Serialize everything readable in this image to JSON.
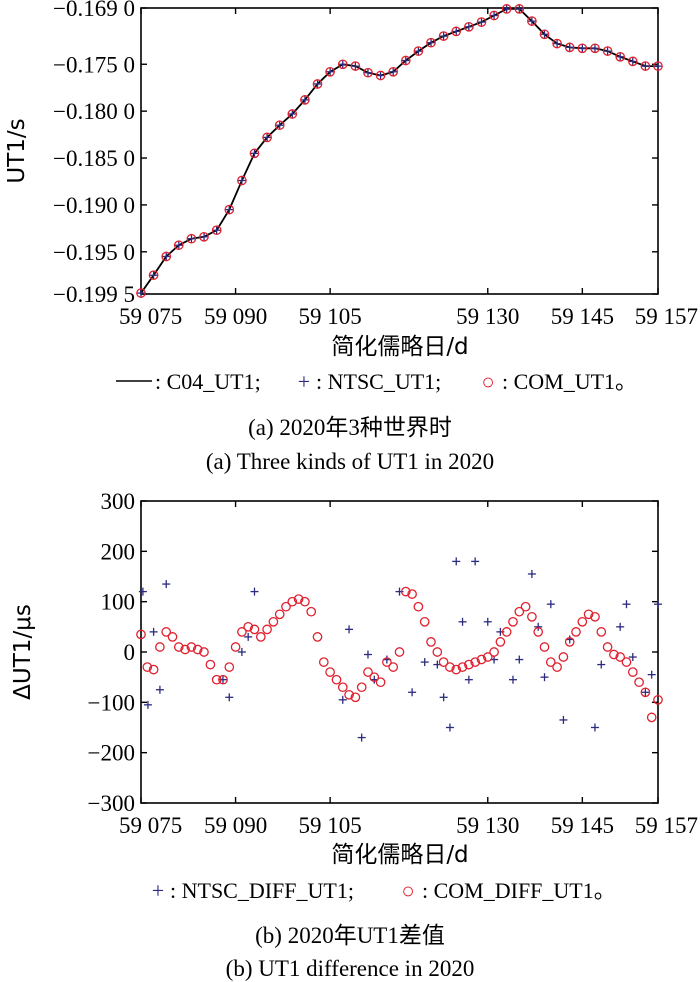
{
  "chart_data": [
    {
      "type": "line",
      "panel": "a",
      "xlabel": "简化儒略日/d",
      "ylabel": "UT1/s",
      "xlim": [
        59075,
        59157
      ],
      "ylim": [
        -0.1995,
        -0.169
      ],
      "xticks": [
        59075,
        59090,
        59105,
        59130,
        59145,
        59157
      ],
      "xtick_labels": [
        "59 075",
        "59 090",
        "59 105",
        "59 130",
        "59 145",
        "59 157"
      ],
      "yticks": [
        -0.1995,
        -0.195,
        -0.19,
        -0.185,
        -0.18,
        -0.175,
        -0.169
      ],
      "ytick_labels": [
        "−0.199 5",
        "−0.195 0",
        "−0.190 0",
        "−0.185 0",
        "−0.180 0",
        "−0.175 0",
        "−0.169 0"
      ],
      "series": [
        {
          "name": "C04_UT1",
          "style": "line",
          "color": "#000000",
          "x": [
            59075,
            59077,
            59079,
            59081,
            59083,
            59085,
            59087,
            59089,
            59091,
            59093,
            59095,
            59097,
            59099,
            59101,
            59103,
            59105,
            59107,
            59109,
            59111,
            59113,
            59115,
            59117,
            59119,
            59121,
            59123,
            59125,
            59127,
            59129,
            59131,
            59133,
            59135,
            59137,
            59139,
            59141,
            59143,
            59145,
            59147,
            59149,
            59151,
            59153,
            59155,
            59157
          ],
          "y": [
            -0.1994,
            -0.1975,
            -0.1955,
            -0.1943,
            -0.1936,
            -0.1934,
            -0.1927,
            -0.1905,
            -0.1874,
            -0.1845,
            -0.1828,
            -0.1815,
            -0.1803,
            -0.1788,
            -0.1771,
            -0.1758,
            -0.175,
            -0.1752,
            -0.1759,
            -0.1762,
            -0.1758,
            -0.1746,
            -0.1736,
            -0.1727,
            -0.172,
            -0.1715,
            -0.171,
            -0.1705,
            -0.1698,
            -0.1691,
            -0.1691,
            -0.1704,
            -0.1718,
            -0.1728,
            -0.1732,
            -0.1733,
            -0.1733,
            -0.1736,
            -0.1742,
            -0.1747,
            -0.1752,
            -0.1752
          ]
        },
        {
          "name": "NTSC_UT1",
          "style": "plus",
          "color": "#2b2b80",
          "x": [
            59075,
            59077,
            59079,
            59081,
            59083,
            59085,
            59087,
            59089,
            59091,
            59093,
            59095,
            59097,
            59099,
            59101,
            59103,
            59105,
            59107,
            59109,
            59111,
            59113,
            59115,
            59117,
            59119,
            59121,
            59123,
            59125,
            59127,
            59129,
            59131,
            59133,
            59135,
            59137,
            59139,
            59141,
            59143,
            59145,
            59147,
            59149,
            59151,
            59153,
            59155,
            59157
          ],
          "y": [
            -0.1994,
            -0.1975,
            -0.1955,
            -0.1943,
            -0.1936,
            -0.1934,
            -0.1927,
            -0.1905,
            -0.1874,
            -0.1845,
            -0.1828,
            -0.1815,
            -0.1803,
            -0.1788,
            -0.1771,
            -0.1758,
            -0.175,
            -0.1752,
            -0.1759,
            -0.1762,
            -0.1758,
            -0.1746,
            -0.1736,
            -0.1727,
            -0.172,
            -0.1715,
            -0.171,
            -0.1705,
            -0.1698,
            -0.1691,
            -0.1691,
            -0.1704,
            -0.1718,
            -0.1728,
            -0.1732,
            -0.1733,
            -0.1733,
            -0.1736,
            -0.1742,
            -0.1747,
            -0.1752,
            -0.1752
          ]
        },
        {
          "name": "COM_UT1",
          "style": "circle",
          "color": "#e0202e",
          "x": [
            59075,
            59077,
            59079,
            59081,
            59083,
            59085,
            59087,
            59089,
            59091,
            59093,
            59095,
            59097,
            59099,
            59101,
            59103,
            59105,
            59107,
            59109,
            59111,
            59113,
            59115,
            59117,
            59119,
            59121,
            59123,
            59125,
            59127,
            59129,
            59131,
            59133,
            59135,
            59137,
            59139,
            59141,
            59143,
            59145,
            59147,
            59149,
            59151,
            59153,
            59155,
            59157
          ],
          "y": [
            -0.1994,
            -0.1975,
            -0.1955,
            -0.1943,
            -0.1936,
            -0.1934,
            -0.1927,
            -0.1905,
            -0.1874,
            -0.1845,
            -0.1828,
            -0.1815,
            -0.1803,
            -0.1788,
            -0.1771,
            -0.1758,
            -0.175,
            -0.1752,
            -0.1759,
            -0.1762,
            -0.1758,
            -0.1746,
            -0.1736,
            -0.1727,
            -0.172,
            -0.1715,
            -0.171,
            -0.1705,
            -0.1698,
            -0.1691,
            -0.1691,
            -0.1704,
            -0.1718,
            -0.1728,
            -0.1732,
            -0.1733,
            -0.1733,
            -0.1736,
            -0.1742,
            -0.1747,
            -0.1752,
            -0.1752
          ]
        }
      ],
      "legend": [
        {
          "symbol": "——",
          "label": ": C04_UT1;"
        },
        {
          "symbol": "+",
          "label": ": NTSC_UT1;"
        },
        {
          "symbol": "○",
          "label": ": COM_UT1。"
        }
      ],
      "caption_cn": "(a) 2020年3种世界时",
      "caption_en": "(a) Three kinds of UT1 in 2020"
    },
    {
      "type": "scatter",
      "panel": "b",
      "xlabel": "简化儒略日/d",
      "ylabel": "ΔUT1/μs",
      "xlim": [
        59075,
        59157
      ],
      "ylim": [
        -300,
        300
      ],
      "xticks": [
        59075,
        59090,
        59105,
        59130,
        59145,
        59157
      ],
      "xtick_labels": [
        "59 075",
        "59 090",
        "59 105",
        "59 130",
        "59 145",
        "59 157"
      ],
      "yticks": [
        -300,
        -200,
        -100,
        0,
        100,
        200,
        300
      ],
      "ytick_labels": [
        "−300",
        "−200",
        "−100",
        "0",
        "100",
        "200",
        "300"
      ],
      "series": [
        {
          "name": "NTSC_DIFF_UT1",
          "style": "plus",
          "color": "#2b2b80",
          "x": [
            59075.3,
            59076.1,
            59077.0,
            59078.0,
            59079.0,
            59088.0,
            59089.0,
            59091.0,
            59092.0,
            59093.0,
            59107.0,
            59108.0,
            59110.0,
            59111.0,
            59112.0,
            59114.0,
            59116.0,
            59118.0,
            59120.0,
            59122.0,
            59123.0,
            59124.0,
            59125.0,
            59126.0,
            59127.0,
            59128.0,
            59130.0,
            59131.0,
            59132.0,
            59134.0,
            59135.0,
            59137.0,
            59138.0,
            59139.0,
            59140.0,
            59142.0,
            59143.0,
            59147.0,
            59148.0,
            59151.0,
            59152.0,
            59153.0,
            59155.0,
            59156.0,
            59157.0
          ],
          "y": [
            120,
            -105,
            40,
            -75,
            135,
            -55,
            -90,
            0,
            30,
            120,
            -95,
            45,
            -170,
            -5,
            -55,
            -15,
            120,
            -80,
            -20,
            -25,
            -90,
            -150,
            180,
            60,
            -55,
            180,
            60,
            -15,
            40,
            -55,
            -15,
            155,
            50,
            -50,
            95,
            -135,
            25,
            -150,
            -25,
            50,
            95,
            -10,
            -80,
            -45,
            95
          ]
        },
        {
          "name": "COM_DIFF_UT1",
          "style": "circle",
          "color": "#e0202e",
          "x": [
            59075,
            59076,
            59077,
            59078,
            59079,
            59080,
            59081,
            59082,
            59083,
            59084,
            59085,
            59086,
            59087,
            59088,
            59089,
            59090,
            59091,
            59092,
            59093,
            59094,
            59095,
            59096,
            59097,
            59098,
            59099,
            59100,
            59101,
            59102,
            59103,
            59104,
            59105,
            59106,
            59107,
            59108,
            59109,
            59110,
            59111,
            59112,
            59113,
            59114,
            59115,
            59116,
            59117,
            59118,
            59119,
            59120,
            59121,
            59122,
            59123,
            59124,
            59125,
            59126,
            59127,
            59128,
            59129,
            59130,
            59131,
            59132,
            59133,
            59134,
            59135,
            59136,
            59137,
            59138,
            59139,
            59140,
            59141,
            59142,
            59143,
            59144,
            59145,
            59146,
            59147,
            59148,
            59149,
            59150,
            59151,
            59152,
            59153,
            59154,
            59155,
            59156,
            59157
          ],
          "y": [
            35,
            -30,
            -35,
            10,
            40,
            30,
            10,
            5,
            10,
            5,
            0,
            -25,
            -55,
            -55,
            -30,
            10,
            40,
            50,
            45,
            30,
            45,
            60,
            75,
            90,
            100,
            105,
            100,
            80,
            30,
            -20,
            -40,
            -55,
            -70,
            -85,
            -90,
            -70,
            -40,
            -50,
            -60,
            -20,
            -30,
            0,
            120,
            115,
            90,
            60,
            20,
            0,
            -20,
            -30,
            -35,
            -30,
            -25,
            -20,
            -15,
            -10,
            0,
            20,
            40,
            60,
            80,
            90,
            70,
            40,
            10,
            -20,
            -30,
            -10,
            20,
            40,
            60,
            75,
            70,
            40,
            10,
            -5,
            -10,
            -20,
            -40,
            -60,
            -80,
            -130,
            -95
          ]
        }
      ],
      "legend": [
        {
          "symbol": "+",
          "label": ": NTSC_DIFF_UT1;"
        },
        {
          "symbol": "○",
          "label": ": COM_DIFF_UT1。"
        }
      ],
      "caption_cn": "(b) 2020年UT1差值",
      "caption_en": "(b) UT1 difference in 2020"
    }
  ]
}
